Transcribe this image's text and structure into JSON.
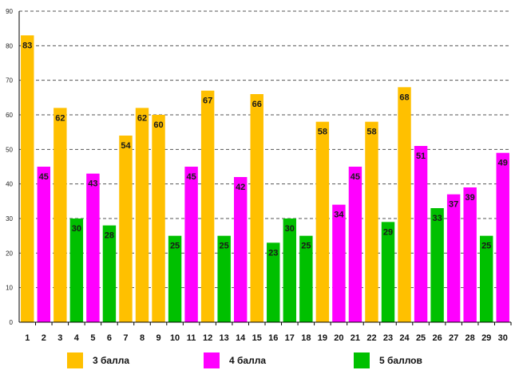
{
  "chart_data": {
    "type": "bar",
    "title": "",
    "xlabel": "",
    "ylabel": "",
    "ylim": [
      0,
      90
    ],
    "yticks": [
      "0",
      "10",
      "20",
      "30",
      "40",
      "50",
      "60",
      "70",
      "80",
      "90"
    ],
    "grid": true,
    "categories": [
      "1",
      "2",
      "3",
      "4",
      "5",
      "6",
      "7",
      "8",
      "9",
      "10",
      "11",
      "12",
      "13",
      "14",
      "15",
      "16",
      "17",
      "18",
      "19",
      "20",
      "21",
      "22",
      "23",
      "24",
      "25",
      "26",
      "27",
      "28",
      "29",
      "30"
    ],
    "values": [
      83,
      45,
      62,
      30,
      43,
      28,
      54,
      62,
      60,
      25,
      45,
      67,
      25,
      42,
      66,
      23,
      30,
      25,
      58,
      34,
      45,
      58,
      29,
      68,
      51,
      33,
      37,
      39,
      25,
      49
    ],
    "groups": [
      "3 балла",
      "4 балла",
      "3 балла",
      "5 баллов",
      "4 балла",
      "5 баллов",
      "3 балла",
      "3 балла",
      "3 балла",
      "5 баллов",
      "4 балла",
      "3 балла",
      "5 баллов",
      "4 балла",
      "3 балла",
      "5 баллов",
      "5 баллов",
      "5 баллов",
      "3 балла",
      "4 балла",
      "4 балла",
      "3 балла",
      "5 баллов",
      "3 балла",
      "4 балла",
      "5 баллов",
      "4 балла",
      "4 балла",
      "5 баллов",
      "4 балла"
    ],
    "legend": [
      {
        "name": "3 балла",
        "color": "#FFC000"
      },
      {
        "name": "4 балла",
        "color": "#FF00FF"
      },
      {
        "name": "5 баллов",
        "color": "#00C000"
      }
    ],
    "legend_position": "bottom"
  }
}
